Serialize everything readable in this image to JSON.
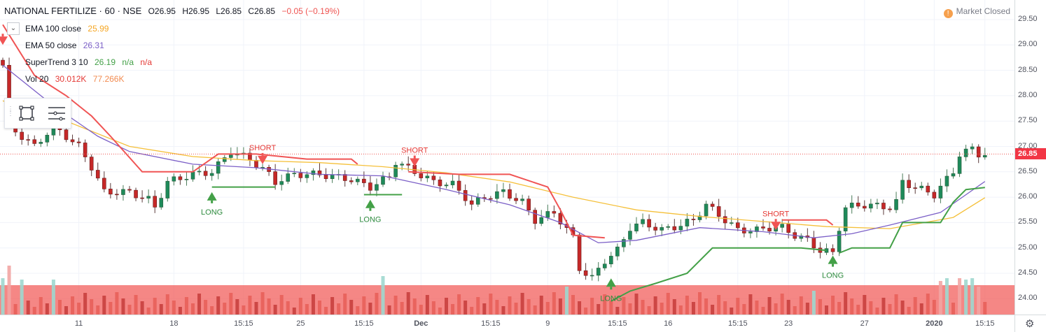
{
  "header": {
    "symbol": "NATIONAL FERTILIZE · 60 · NSE",
    "open": "O26.95",
    "high": "H26.95",
    "low": "L26.85",
    "close": "C26.85",
    "change": "−0.05 (−0.19%)"
  },
  "market_status": {
    "icon": "exclamation-icon",
    "label": "Market Closed"
  },
  "indicators": [
    {
      "name": "EMA 100 close",
      "values": [
        "25.99"
      ],
      "colors": [
        "#f5a623"
      ]
    },
    {
      "name": "EMA 50 close",
      "values": [
        "26.31"
      ],
      "colors": [
        "#7b5fc7"
      ]
    },
    {
      "name": "SuperTrend 3 10",
      "values": [
        "26.19",
        "n/a",
        "n/a"
      ],
      "colors": [
        "#43a047",
        "#43a047",
        "#e53935"
      ]
    },
    {
      "name": "Vol 20",
      "values": [
        "30.012K",
        "77.266K"
      ],
      "colors": [
        "#e53935",
        "#f28b50"
      ]
    }
  ],
  "toolbox_icons": [
    "rectangle-icon",
    "horizontal-lines-icon"
  ],
  "colors": {
    "up": "#26a69a",
    "up_body": "#1e8a5a",
    "down": "#ef5350",
    "down_body": "#c62828",
    "ema100": "#f5c03a",
    "ema50": "#7b5fc7",
    "st_up": "#43a047",
    "st_down": "#f05454",
    "volume_band": "#f25f5c"
  },
  "chart_data": {
    "type": "candlestick",
    "title": "NATIONAL FERTILIZE · 60 · NSE",
    "y_axis": {
      "ticks": [
        "29.50",
        "29.00",
        "28.50",
        "28.00",
        "27.50",
        "27.00",
        "26.50",
        "26.00",
        "25.50",
        "25.00",
        "24.50",
        "24.00"
      ],
      "range": [
        23.7,
        29.7
      ]
    },
    "x_axis": {
      "ticks": [
        "11",
        "18",
        "15:15",
        "25",
        "15:15",
        "Dec",
        "15:15",
        "9",
        "15:15",
        "16",
        "15:15",
        "23",
        "27",
        "2020",
        "15:15"
      ]
    },
    "current_price": "26.85",
    "close_path": [
      [
        0,
        28.6
      ],
      [
        1,
        27.6
      ],
      [
        2,
        27.3
      ],
      [
        3,
        27.2
      ],
      [
        5,
        27.0
      ],
      [
        8,
        27.4
      ],
      [
        12,
        27.0
      ],
      [
        14,
        26.6
      ],
      [
        16,
        26.1
      ],
      [
        20,
        26.1
      ],
      [
        23,
        25.95
      ],
      [
        24,
        25.8
      ],
      [
        26,
        26.3
      ],
      [
        30,
        26.45
      ],
      [
        33,
        26.5
      ],
      [
        36,
        26.9
      ],
      [
        39,
        26.75
      ],
      [
        42,
        26.45
      ],
      [
        43,
        26.3
      ],
      [
        46,
        26.45
      ],
      [
        50,
        26.45
      ],
      [
        55,
        26.35
      ],
      [
        58,
        26.2
      ],
      [
        61,
        26.4
      ],
      [
        62,
        26.7
      ],
      [
        65,
        26.5
      ],
      [
        68,
        26.3
      ],
      [
        71,
        26.25
      ],
      [
        73,
        26.0
      ],
      [
        74,
        25.85
      ],
      [
        76,
        26.0
      ],
      [
        79,
        26.1
      ],
      [
        82,
        25.9
      ],
      [
        84,
        25.55
      ],
      [
        87,
        25.7
      ],
      [
        90,
        25.2
      ],
      [
        91,
        24.6
      ],
      [
        93,
        24.4
      ],
      [
        95,
        24.75
      ],
      [
        97,
        24.95
      ],
      [
        99,
        25.4
      ],
      [
        101,
        25.5
      ],
      [
        104,
        25.35
      ],
      [
        107,
        25.45
      ],
      [
        109,
        25.55
      ],
      [
        111,
        25.85
      ],
      [
        113,
        25.65
      ],
      [
        116,
        25.35
      ],
      [
        119,
        25.35
      ],
      [
        121,
        25.4
      ],
      [
        123,
        25.4
      ],
      [
        125,
        25.25
      ],
      [
        127,
        25.15
      ],
      [
        129,
        24.95
      ],
      [
        131,
        24.9
      ],
      [
        132,
        25.4
      ],
      [
        133,
        25.8
      ],
      [
        136,
        25.85
      ],
      [
        140,
        25.8
      ],
      [
        141,
        25.9
      ],
      [
        142,
        26.3
      ],
      [
        145,
        26.15
      ],
      [
        147,
        26.05
      ],
      [
        148,
        26.2
      ],
      [
        150,
        26.5
      ],
      [
        151,
        26.85
      ],
      [
        153,
        26.95
      ],
      [
        154,
        26.85
      ],
      [
        155,
        26.85
      ]
    ],
    "volume_highlights": [
      [
        0,
        52
      ],
      [
        1,
        70
      ],
      [
        3,
        50
      ],
      [
        8,
        50
      ],
      [
        60,
        55
      ],
      [
        89,
        40
      ],
      [
        128,
        34
      ],
      [
        148,
        48
      ],
      [
        149,
        52
      ],
      [
        151,
        52
      ],
      [
        152,
        50
      ],
      [
        153,
        52
      ],
      [
        154,
        40
      ]
    ],
    "series": [
      {
        "name": "EMA 100 close",
        "points": [
          [
            0,
            27.9
          ],
          [
            10,
            27.5
          ],
          [
            20,
            27.0
          ],
          [
            30,
            26.8
          ],
          [
            40,
            26.72
          ],
          [
            50,
            26.68
          ],
          [
            60,
            26.6
          ],
          [
            70,
            26.48
          ],
          [
            80,
            26.3
          ],
          [
            90,
            26.0
          ],
          [
            100,
            25.75
          ],
          [
            110,
            25.62
          ],
          [
            120,
            25.52
          ],
          [
            130,
            25.42
          ],
          [
            140,
            25.38
          ],
          [
            150,
            25.6
          ],
          [
            155,
            25.99
          ]
        ]
      },
      {
        "name": "EMA 50 close",
        "points": [
          [
            0,
            28.6
          ],
          [
            8,
            27.8
          ],
          [
            15,
            27.2
          ],
          [
            20,
            26.9
          ],
          [
            30,
            26.65
          ],
          [
            40,
            26.58
          ],
          [
            50,
            26.45
          ],
          [
            60,
            26.42
          ],
          [
            70,
            26.15
          ],
          [
            80,
            25.85
          ],
          [
            88,
            25.5
          ],
          [
            94,
            25.1
          ],
          [
            100,
            25.15
          ],
          [
            110,
            25.4
          ],
          [
            120,
            25.32
          ],
          [
            128,
            25.2
          ],
          [
            134,
            25.28
          ],
          [
            140,
            25.45
          ],
          [
            148,
            25.7
          ],
          [
            155,
            26.31
          ]
        ]
      },
      {
        "name": "SuperTrend 3 10",
        "segments": [
          {
            "dir": "down",
            "points": [
              [
                0,
                29.4
              ],
              [
                5,
                28.4
              ],
              [
                10,
                28.0
              ],
              [
                14,
                27.6
              ],
              [
                17,
                27.2
              ],
              [
                22,
                26.5
              ],
              [
                30,
                26.5
              ],
              [
                34,
                26.85
              ],
              [
                40,
                26.85
              ],
              [
                48,
                26.75
              ],
              [
                55,
                26.75
              ],
              [
                56,
                26.65
              ]
            ]
          },
          {
            "dir": "up",
            "points": [
              [
                33,
                26.2
              ],
              [
                43,
                26.2
              ]
            ]
          },
          {
            "dir": "up",
            "points": [
              [
                57,
                26.05
              ],
              [
                63,
                26.05
              ]
            ]
          },
          {
            "dir": "down",
            "points": [
              [
                64,
                26.5
              ],
              [
                72,
                26.45
              ],
              [
                80,
                26.45
              ],
              [
                86,
                26.2
              ],
              [
                88,
                25.75
              ],
              [
                90,
                25.25
              ],
              [
                95,
                25.2
              ]
            ]
          },
          {
            "dir": "up",
            "points": [
              [
                96,
                23.95
              ],
              [
                99,
                24.15
              ],
              [
                103,
                24.3
              ],
              [
                108,
                24.5
              ],
              [
                112,
                25.0
              ],
              [
                118,
                25.0
              ],
              [
                126,
                25.0
              ],
              [
                130,
                24.95
              ]
            ]
          },
          {
            "dir": "down",
            "points": [
              [
                123,
                25.55
              ],
              [
                130,
                25.55
              ],
              [
                131,
                25.45
              ]
            ]
          },
          {
            "dir": "up",
            "points": [
              [
                132,
                24.9
              ],
              [
                134,
                25.0
              ],
              [
                140,
                25.0
              ],
              [
                142,
                25.5
              ],
              [
                148,
                25.5
              ],
              [
                150,
                25.9
              ],
              [
                152,
                26.15
              ],
              [
                155,
                26.19
              ]
            ]
          }
        ]
      }
    ],
    "signals": [
      {
        "type": "SHORT",
        "x": 0,
        "price": 29.0,
        "label": ""
      },
      {
        "type": "LONG",
        "x": 33,
        "price": 26.1,
        "label": "LONG"
      },
      {
        "type": "SHORT",
        "x": 41,
        "price": 26.65,
        "label": "SHORT"
      },
      {
        "type": "LONG",
        "x": 58,
        "price": 25.95,
        "label": "LONG"
      },
      {
        "type": "SHORT",
        "x": 65,
        "price": 26.6,
        "label": "SHORT"
      },
      {
        "type": "LONG",
        "x": 96,
        "price": 24.4,
        "label": "LONG"
      },
      {
        "type": "SHORT",
        "x": 122,
        "price": 25.35,
        "label": "SHORT"
      },
      {
        "type": "LONG",
        "x": 131,
        "price": 24.85,
        "label": "LONG"
      }
    ]
  }
}
